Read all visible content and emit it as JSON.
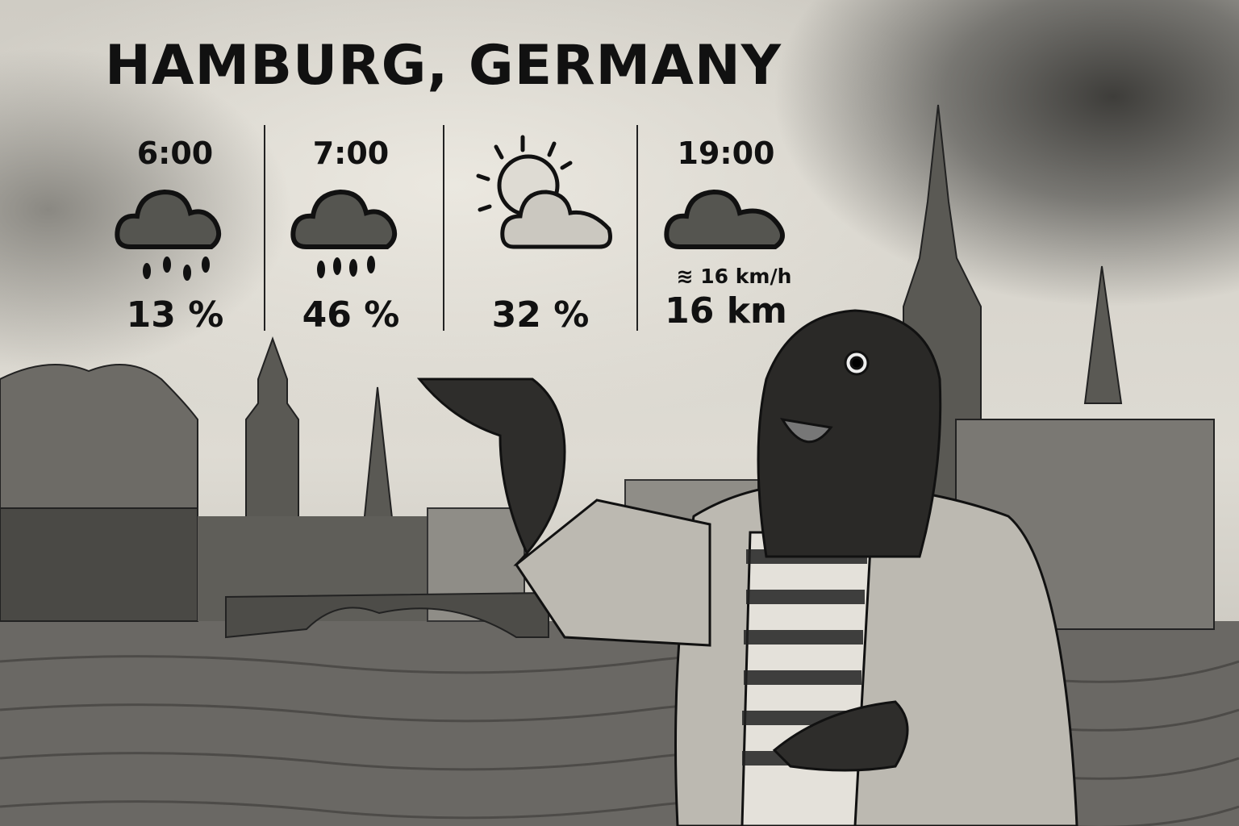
{
  "title": "HAMBURG, GERMANY",
  "forecast": [
    {
      "time": "6:00",
      "icon": "rain-cloud-icon",
      "value": "13 %"
    },
    {
      "time": "7:00",
      "icon": "rain-cloud-icon",
      "value": "46 %"
    },
    {
      "time": "",
      "icon": "partly-sunny-icon",
      "value": "32 %"
    },
    {
      "time": "19:00",
      "icon": "cloud-icon",
      "wind": "16 km/h",
      "value": "16 km"
    }
  ],
  "colors": {
    "ink": "#111111",
    "paper": "#dedbd3",
    "cloud_fill": "#555550"
  }
}
